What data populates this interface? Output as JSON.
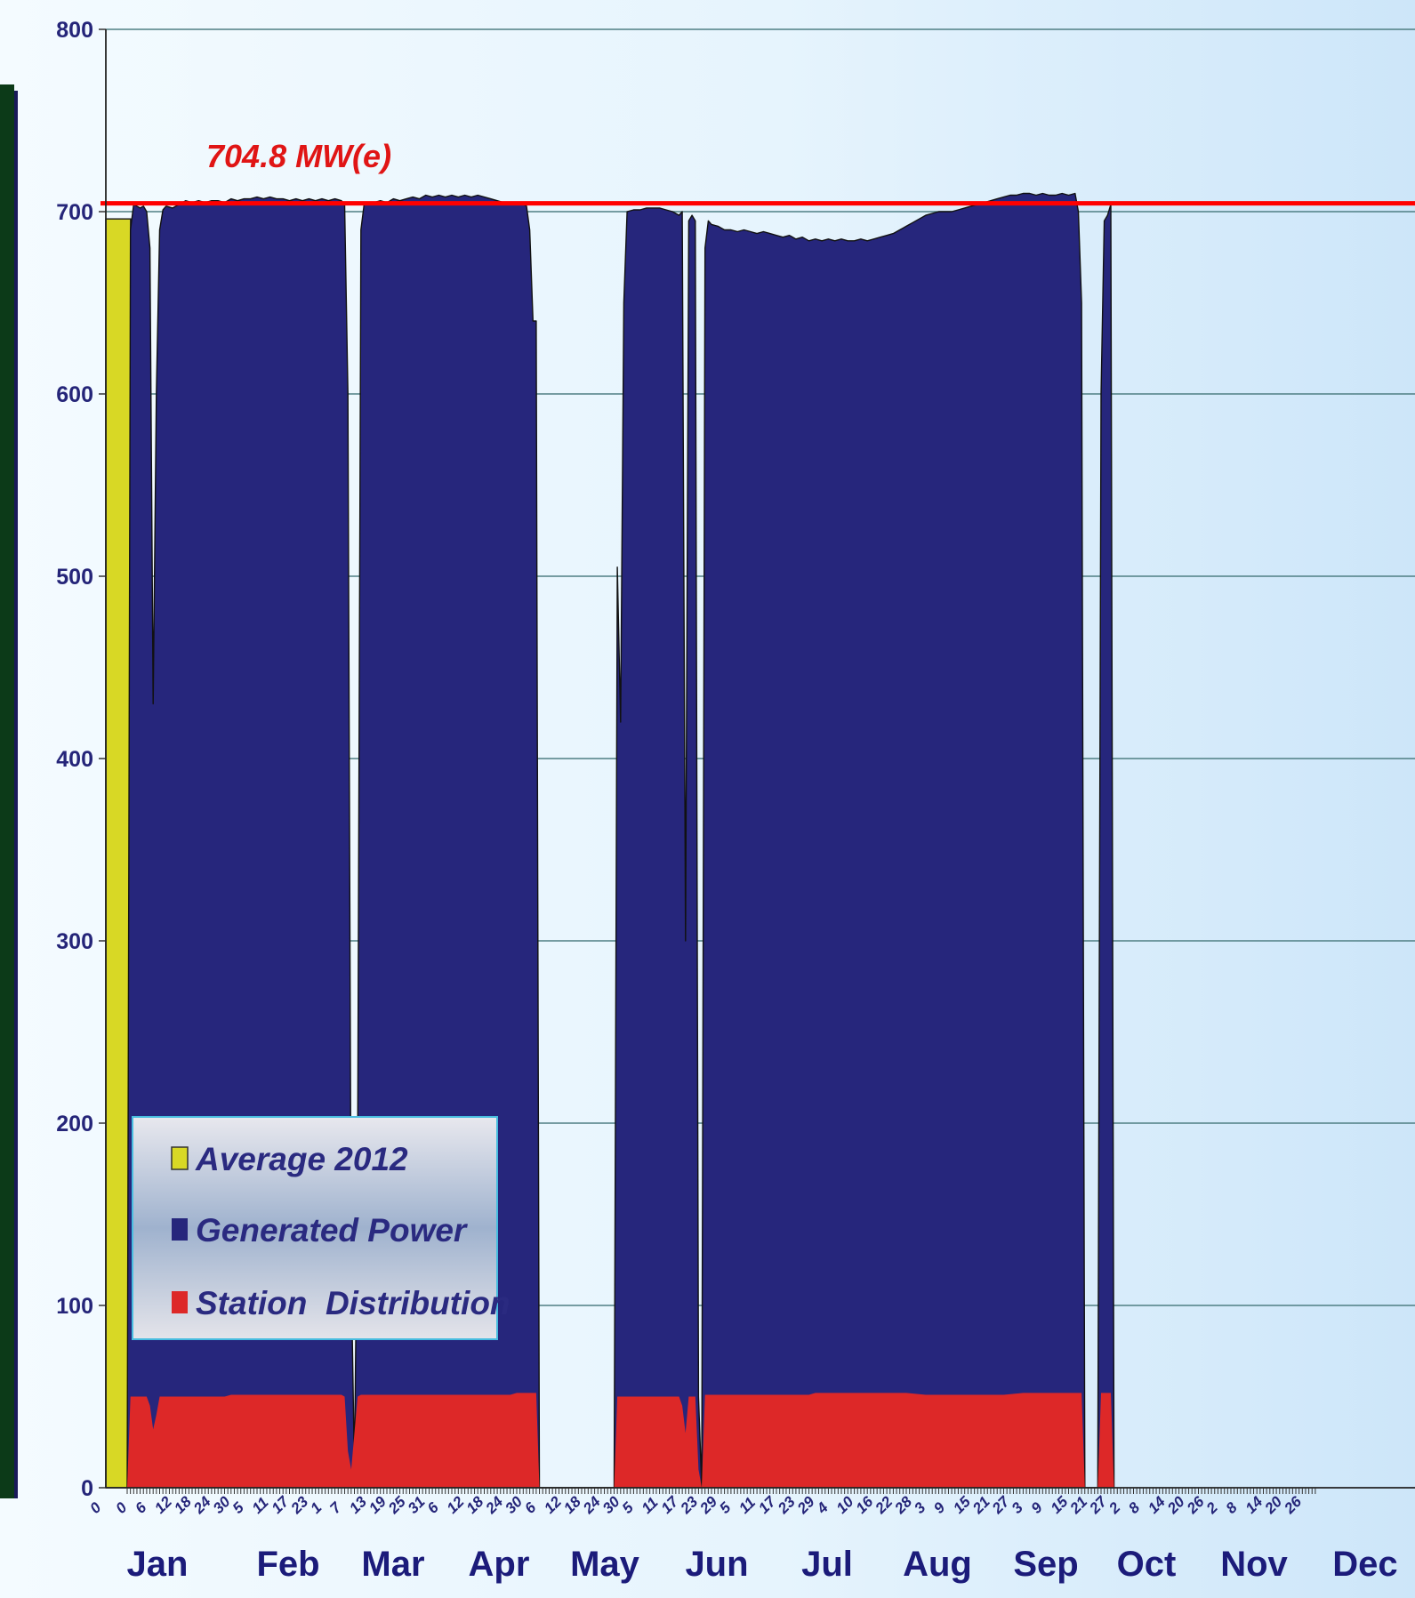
{
  "chart_data": {
    "type": "area",
    "title": "",
    "xlabel": "",
    "ylabel": "",
    "ylim": [
      0,
      800
    ],
    "yticks": [
      0,
      100,
      200,
      300,
      400,
      500,
      600,
      700,
      800
    ],
    "grid": true,
    "grid_axis": "y",
    "legend_position": "lower-left",
    "capacity_line": {
      "value": 704.8,
      "label": "704.8 MW(e)",
      "color": "#ff0000"
    },
    "average_bar": {
      "name": "Average 2012",
      "value": 696,
      "color": "#d8d825"
    },
    "months": [
      "Jan",
      "Feb",
      "Mar",
      "Apr",
      "May",
      "Jun",
      "Jul",
      "Aug",
      "Sep",
      "Oct",
      "Nov",
      "Dec"
    ],
    "day_ticks": [
      {
        "d": 0,
        "label": "0"
      },
      {
        "d": 6,
        "label": "6"
      },
      {
        "d": 12,
        "label": "12"
      },
      {
        "d": 18,
        "label": "18"
      },
      {
        "d": 24,
        "label": "24"
      },
      {
        "d": 30,
        "label": "30"
      },
      {
        "d": 36,
        "label": "5"
      },
      {
        "d": 42,
        "label": "11"
      },
      {
        "d": 48,
        "label": "17"
      },
      {
        "d": 54,
        "label": "23"
      },
      {
        "d": 60,
        "label": "1"
      },
      {
        "d": 66,
        "label": "7"
      },
      {
        "d": 72,
        "label": "13"
      },
      {
        "d": 78,
        "label": "19"
      },
      {
        "d": 84,
        "label": "25"
      },
      {
        "d": 90,
        "label": "31"
      },
      {
        "d": 96,
        "label": "6"
      },
      {
        "d": 102,
        "label": "12"
      },
      {
        "d": 108,
        "label": "18"
      },
      {
        "d": 114,
        "label": "24"
      },
      {
        "d": 120,
        "label": "30"
      },
      {
        "d": 126,
        "label": "6"
      },
      {
        "d": 132,
        "label": "12"
      },
      {
        "d": 138,
        "label": "18"
      },
      {
        "d": 144,
        "label": "24"
      },
      {
        "d": 150,
        "label": "30"
      },
      {
        "d": 156,
        "label": "5"
      },
      {
        "d": 162,
        "label": "11"
      },
      {
        "d": 168,
        "label": "17"
      },
      {
        "d": 174,
        "label": "23"
      },
      {
        "d": 180,
        "label": "29"
      },
      {
        "d": 186,
        "label": "5"
      },
      {
        "d": 192,
        "label": "11"
      },
      {
        "d": 198,
        "label": "17"
      },
      {
        "d": 204,
        "label": "23"
      },
      {
        "d": 210,
        "label": "29"
      },
      {
        "d": 216,
        "label": "4"
      },
      {
        "d": 222,
        "label": "10"
      },
      {
        "d": 228,
        "label": "16"
      },
      {
        "d": 234,
        "label": "22"
      },
      {
        "d": 240,
        "label": "28"
      },
      {
        "d": 246,
        "label": "3"
      },
      {
        "d": 252,
        "label": "9"
      },
      {
        "d": 258,
        "label": "15"
      },
      {
        "d": 264,
        "label": "21"
      },
      {
        "d": 270,
        "label": "27"
      },
      {
        "d": 276,
        "label": "3"
      },
      {
        "d": 282,
        "label": "9"
      },
      {
        "d": 288,
        "label": "15"
      },
      {
        "d": 294,
        "label": "21"
      },
      {
        "d": 300,
        "label": "27"
      },
      {
        "d": 306,
        "label": "2"
      },
      {
        "d": 312,
        "label": "8"
      },
      {
        "d": 318,
        "label": "14"
      },
      {
        "d": 324,
        "label": "20"
      },
      {
        "d": 330,
        "label": "26"
      },
      {
        "d": 336,
        "label": "2"
      },
      {
        "d": 342,
        "label": "8"
      },
      {
        "d": 348,
        "label": "14"
      },
      {
        "d": 354,
        "label": "20"
      },
      {
        "d": 360,
        "label": "26"
      }
    ],
    "series": [
      {
        "name": "Generated Power",
        "color": "#26267c",
        "points": [
          [
            0,
            0
          ],
          [
            1,
            690
          ],
          [
            2,
            704
          ],
          [
            3,
            703
          ],
          [
            4,
            702
          ],
          [
            5,
            703
          ],
          [
            6,
            700
          ],
          [
            7,
            680
          ],
          [
            8,
            430
          ],
          [
            9,
            600
          ],
          [
            10,
            690
          ],
          [
            11,
            701
          ],
          [
            12,
            703
          ],
          [
            14,
            702
          ],
          [
            16,
            704
          ],
          [
            18,
            706
          ],
          [
            20,
            705
          ],
          [
            22,
            706
          ],
          [
            24,
            705
          ],
          [
            26,
            706
          ],
          [
            28,
            706
          ],
          [
            30,
            705
          ],
          [
            32,
            707
          ],
          [
            34,
            706
          ],
          [
            36,
            707
          ],
          [
            38,
            707
          ],
          [
            40,
            708
          ],
          [
            42,
            707
          ],
          [
            44,
            708
          ],
          [
            46,
            707
          ],
          [
            48,
            707
          ],
          [
            50,
            706
          ],
          [
            52,
            707
          ],
          [
            54,
            706
          ],
          [
            56,
            707
          ],
          [
            58,
            706
          ],
          [
            60,
            707
          ],
          [
            62,
            706
          ],
          [
            64,
            707
          ],
          [
            66,
            706
          ],
          [
            67,
            704
          ],
          [
            68,
            600
          ],
          [
            69,
            120
          ],
          [
            70,
            10
          ],
          [
            71,
            180
          ],
          [
            72,
            690
          ],
          [
            73,
            704
          ],
          [
            74,
            705
          ],
          [
            76,
            705
          ],
          [
            78,
            706
          ],
          [
            80,
            705
          ],
          [
            82,
            707
          ],
          [
            84,
            706
          ],
          [
            86,
            707
          ],
          [
            88,
            708
          ],
          [
            90,
            707
          ],
          [
            92,
            709
          ],
          [
            94,
            708
          ],
          [
            96,
            709
          ],
          [
            98,
            708
          ],
          [
            100,
            709
          ],
          [
            102,
            708
          ],
          [
            104,
            709
          ],
          [
            106,
            708
          ],
          [
            108,
            709
          ],
          [
            110,
            708
          ],
          [
            112,
            707
          ],
          [
            114,
            706
          ],
          [
            116,
            705
          ],
          [
            118,
            704
          ],
          [
            120,
            704
          ],
          [
            122,
            704
          ],
          [
            123,
            703
          ],
          [
            124,
            690
          ],
          [
            125,
            640
          ],
          [
            126,
            640
          ],
          [
            127,
            0
          ],
          [
            150,
            0
          ],
          [
            151,
            505
          ],
          [
            152,
            420
          ],
          [
            153,
            650
          ],
          [
            154,
            700
          ],
          [
            156,
            701
          ],
          [
            158,
            701
          ],
          [
            160,
            702
          ],
          [
            162,
            702
          ],
          [
            164,
            702
          ],
          [
            166,
            701
          ],
          [
            168,
            700
          ],
          [
            170,
            698
          ],
          [
            171,
            700
          ],
          [
            172,
            300
          ],
          [
            173,
            695
          ],
          [
            174,
            698
          ],
          [
            175,
            695
          ],
          [
            176,
            50
          ],
          [
            177,
            0
          ],
          [
            178,
            680
          ],
          [
            179,
            695
          ],
          [
            180,
            693
          ],
          [
            182,
            692
          ],
          [
            184,
            690
          ],
          [
            186,
            690
          ],
          [
            188,
            689
          ],
          [
            190,
            690
          ],
          [
            192,
            689
          ],
          [
            194,
            688
          ],
          [
            196,
            689
          ],
          [
            198,
            688
          ],
          [
            200,
            687
          ],
          [
            202,
            686
          ],
          [
            204,
            687
          ],
          [
            206,
            685
          ],
          [
            208,
            686
          ],
          [
            210,
            684
          ],
          [
            212,
            685
          ],
          [
            214,
            684
          ],
          [
            216,
            685
          ],
          [
            218,
            684
          ],
          [
            220,
            685
          ],
          [
            222,
            684
          ],
          [
            224,
            684
          ],
          [
            226,
            685
          ],
          [
            228,
            684
          ],
          [
            230,
            685
          ],
          [
            232,
            686
          ],
          [
            234,
            687
          ],
          [
            236,
            688
          ],
          [
            238,
            690
          ],
          [
            240,
            692
          ],
          [
            242,
            694
          ],
          [
            244,
            696
          ],
          [
            246,
            698
          ],
          [
            248,
            699
          ],
          [
            250,
            700
          ],
          [
            252,
            700
          ],
          [
            254,
            700
          ],
          [
            256,
            701
          ],
          [
            258,
            702
          ],
          [
            260,
            703
          ],
          [
            262,
            704
          ],
          [
            264,
            705
          ],
          [
            266,
            706
          ],
          [
            268,
            707
          ],
          [
            270,
            708
          ],
          [
            272,
            709
          ],
          [
            274,
            709
          ],
          [
            276,
            710
          ],
          [
            278,
            710
          ],
          [
            280,
            709
          ],
          [
            282,
            710
          ],
          [
            284,
            709
          ],
          [
            286,
            709
          ],
          [
            288,
            710
          ],
          [
            290,
            709
          ],
          [
            292,
            710
          ],
          [
            293,
            700
          ],
          [
            294,
            650
          ],
          [
            295,
            0
          ],
          [
            299,
            0
          ],
          [
            300,
            600
          ],
          [
            301,
            695
          ],
          [
            302,
            698
          ],
          [
            303,
            704
          ],
          [
            304,
            0
          ]
        ]
      },
      {
        "name": "Station  Distribution",
        "color": "#dd2828",
        "points": [
          [
            0,
            0
          ],
          [
            1,
            50
          ],
          [
            2,
            50
          ],
          [
            4,
            50
          ],
          [
            6,
            50
          ],
          [
            7,
            45
          ],
          [
            8,
            32
          ],
          [
            9,
            40
          ],
          [
            10,
            50
          ],
          [
            12,
            50
          ],
          [
            20,
            50
          ],
          [
            30,
            50
          ],
          [
            32,
            51
          ],
          [
            40,
            51
          ],
          [
            50,
            51
          ],
          [
            60,
            51
          ],
          [
            66,
            51
          ],
          [
            67,
            50
          ],
          [
            68,
            20
          ],
          [
            69,
            10
          ],
          [
            70,
            30
          ],
          [
            71,
            50
          ],
          [
            72,
            51
          ],
          [
            80,
            51
          ],
          [
            90,
            51
          ],
          [
            100,
            51
          ],
          [
            110,
            51
          ],
          [
            118,
            51
          ],
          [
            120,
            52
          ],
          [
            122,
            52
          ],
          [
            126,
            52
          ],
          [
            127,
            0
          ],
          [
            150,
            0
          ],
          [
            151,
            50
          ],
          [
            155,
            50
          ],
          [
            160,
            50
          ],
          [
            165,
            50
          ],
          [
            170,
            50
          ],
          [
            171,
            45
          ],
          [
            172,
            30
          ],
          [
            173,
            50
          ],
          [
            175,
            50
          ],
          [
            176,
            10
          ],
          [
            177,
            0
          ],
          [
            178,
            51
          ],
          [
            180,
            51
          ],
          [
            190,
            51
          ],
          [
            200,
            51
          ],
          [
            210,
            51
          ],
          [
            212,
            52
          ],
          [
            220,
            52
          ],
          [
            230,
            52
          ],
          [
            240,
            52
          ],
          [
            246,
            51
          ],
          [
            250,
            51
          ],
          [
            260,
            51
          ],
          [
            270,
            51
          ],
          [
            276,
            52
          ],
          [
            280,
            52
          ],
          [
            290,
            52
          ],
          [
            294,
            52
          ],
          [
            295,
            0
          ],
          [
            299,
            0
          ],
          [
            300,
            52
          ],
          [
            303,
            52
          ],
          [
            304,
            0
          ]
        ]
      }
    ]
  },
  "legend": {
    "items": [
      {
        "label": "Average 2012",
        "color": "#d8d825"
      },
      {
        "label": "Generated Power",
        "color": "#26267c"
      },
      {
        "label": "Station  Distribution",
        "color": "#dd2828"
      }
    ]
  }
}
